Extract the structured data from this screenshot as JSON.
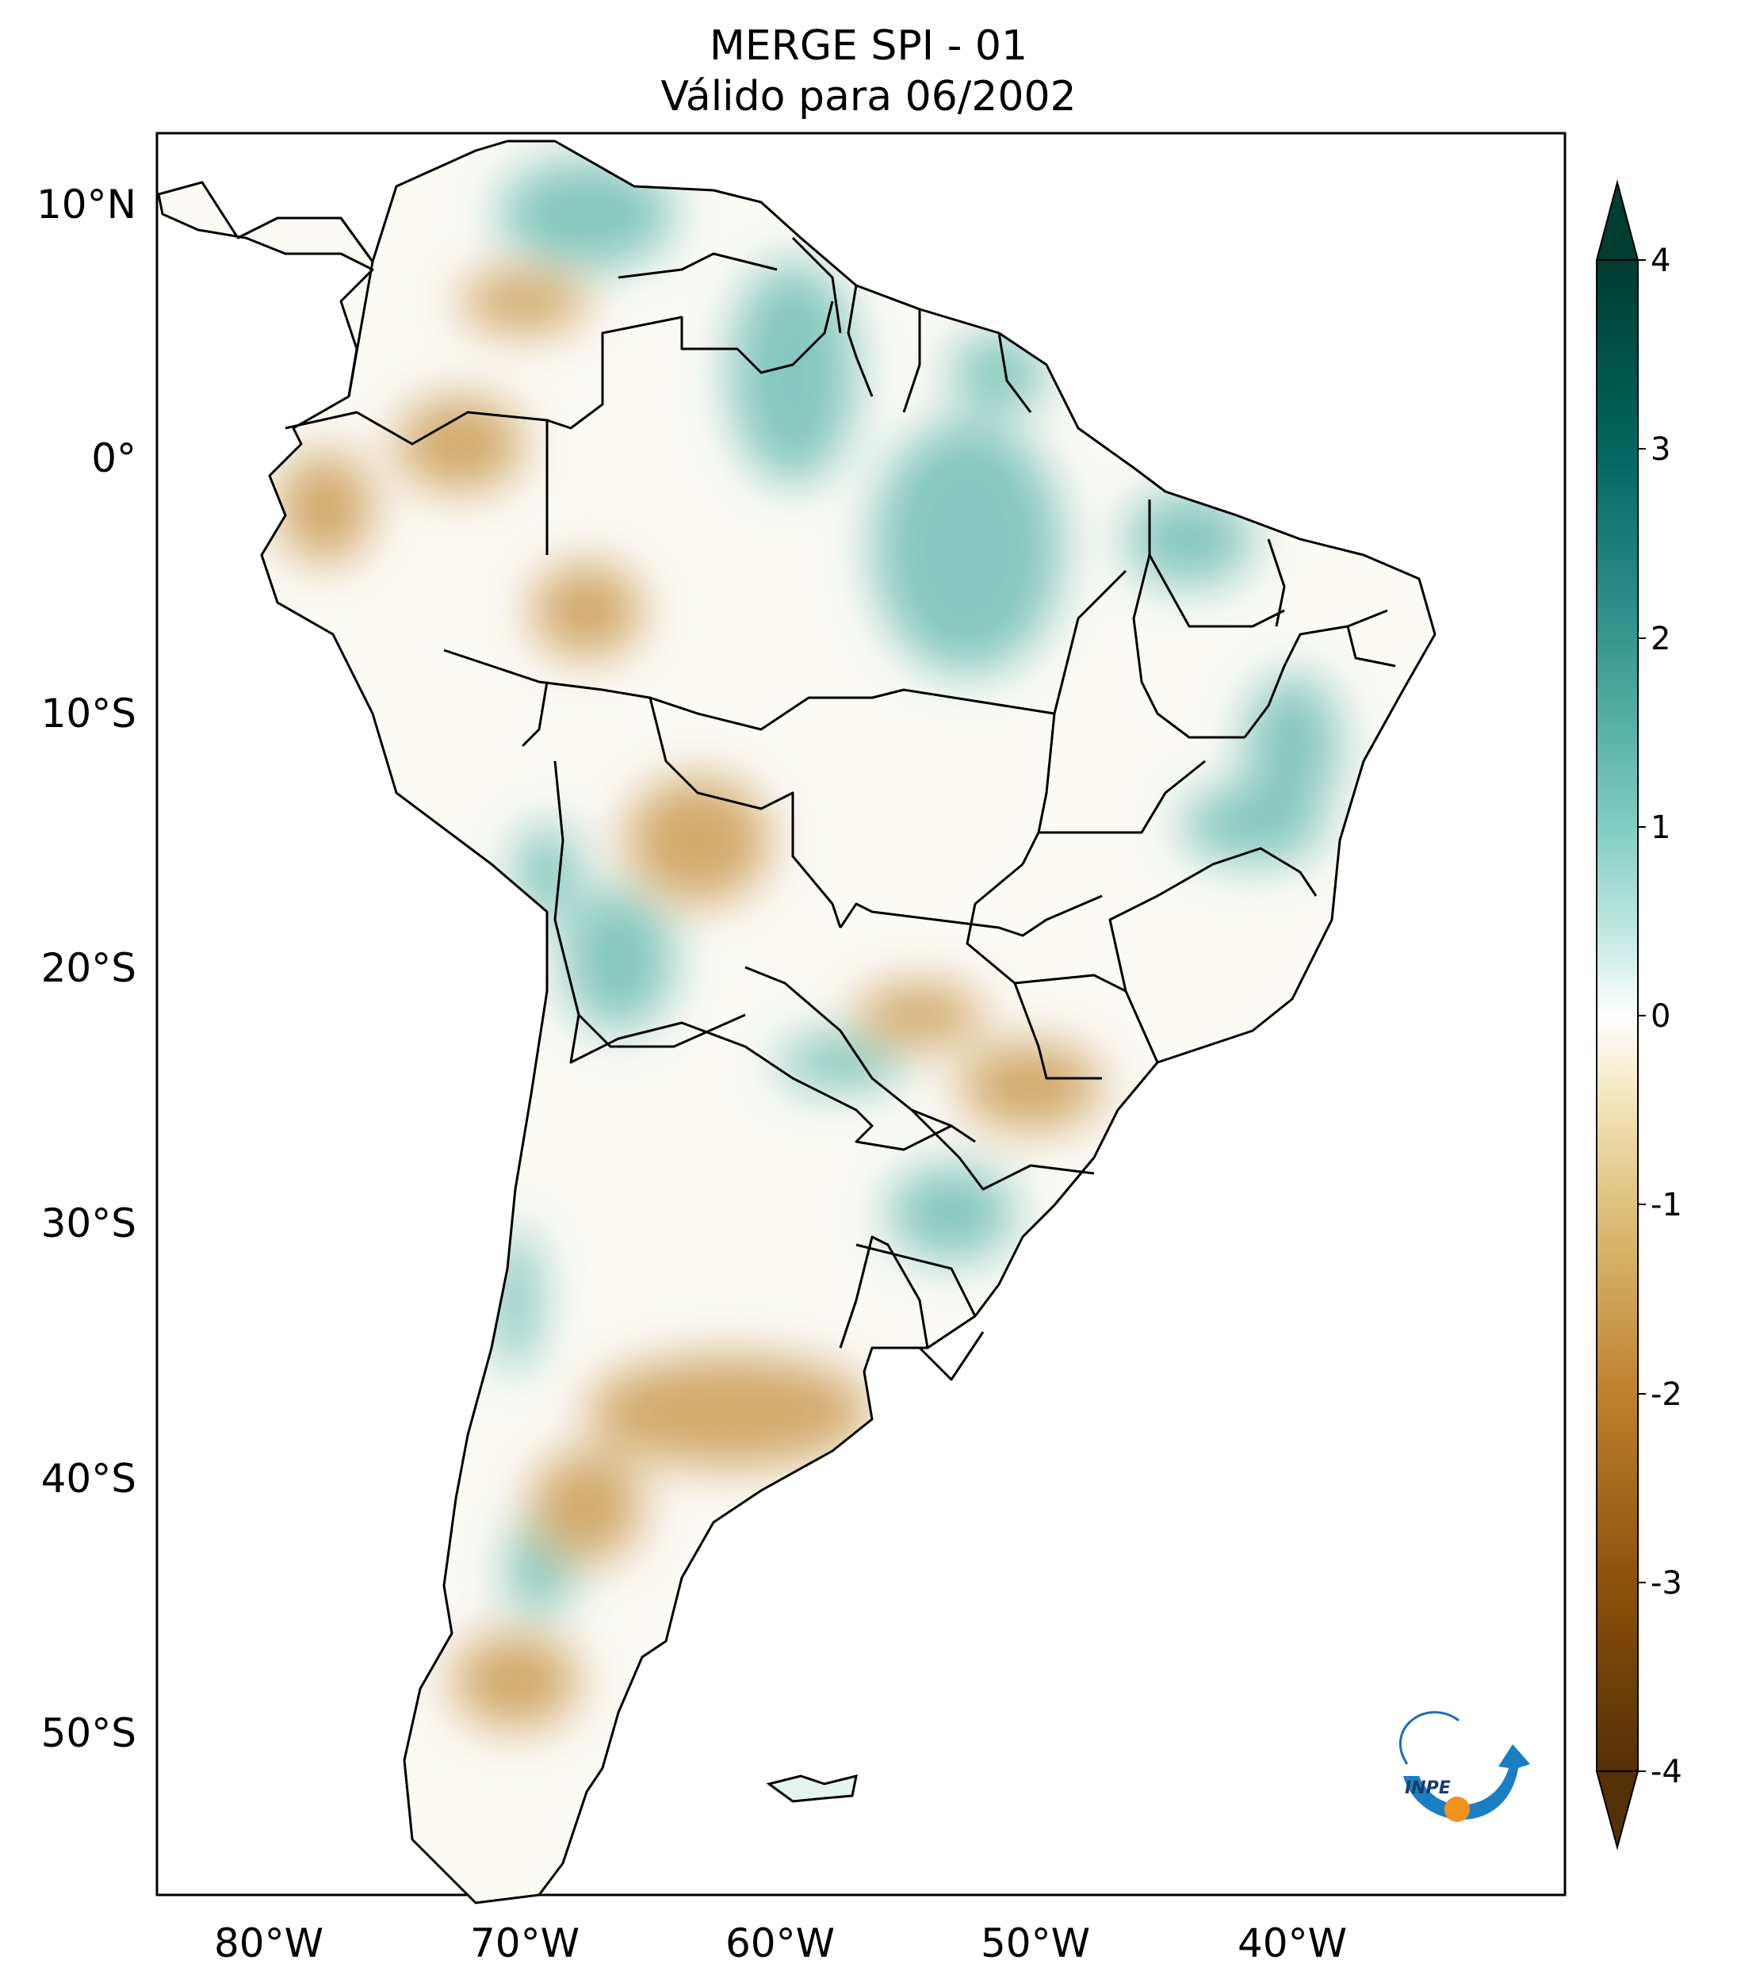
{
  "title": {
    "line1": "MERGE   SPI - 01",
    "line2": "Válido para 06/2002"
  },
  "axes": {
    "lat_labels": [
      "10°N",
      "0°",
      "10°S",
      "20°S",
      "30°S",
      "40°S",
      "50°S"
    ],
    "lon_labels": [
      "80°W",
      "70°W",
      "60°W",
      "50°W",
      "40°W"
    ]
  },
  "colorbar": {
    "ticks": [
      "4",
      "3",
      "2",
      "1",
      "0",
      "-1",
      "-2",
      "-3",
      "-4"
    ],
    "min": -4,
    "max": 4,
    "colors": {
      "neg4": "#543005",
      "neg3": "#8c510a",
      "neg2": "#bf812d",
      "neg1": "#dfc27d",
      "neg05": "#f6e8c3",
      "zero": "#ffffff",
      "pos05": "#c7eae5",
      "pos1": "#80cdc1",
      "pos2": "#35978f",
      "pos3": "#01665e",
      "pos4": "#003c30"
    }
  },
  "logo": {
    "text": "INPE"
  },
  "colors": {
    "dry": "#c8964a",
    "wet": "#5fb8ad",
    "border": "#000000"
  }
}
